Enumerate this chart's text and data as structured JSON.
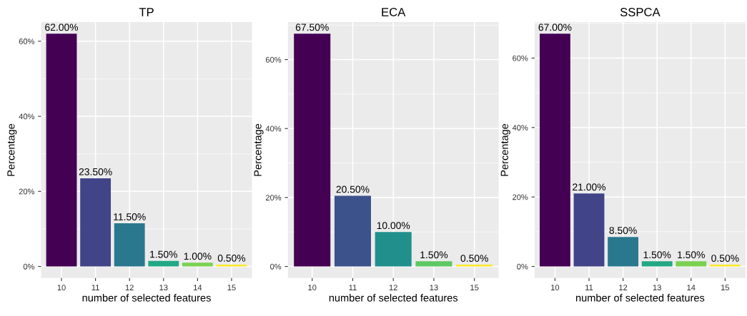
{
  "chart_data": [
    {
      "type": "bar",
      "title": "TP",
      "xlabel": "number of selected features",
      "ylabel": "Percentage",
      "categories": [
        "10",
        "11",
        "12",
        "13",
        "14",
        "15"
      ],
      "values": [
        62,
        23.5,
        11.5,
        1.5,
        1,
        0.5
      ],
      "colors": [
        "#440154",
        "#414487",
        "#2a788e",
        "#22a884",
        "#7ad151",
        "#fde725"
      ],
      "value_labels": [
        "62.00%",
        "23.50%",
        "11.50%",
        "1.50%",
        "1.00%",
        "0.50%"
      ],
      "ylim": [
        -3.1,
        65.1
      ],
      "yticks": [
        {
          "value": 0,
          "label": "0%"
        },
        {
          "value": 20,
          "label": "20%"
        },
        {
          "value": 40,
          "label": "40%"
        },
        {
          "value": 60,
          "label": "60%"
        }
      ],
      "grid": true,
      "legend": false
    },
    {
      "type": "bar",
      "title": "ECA",
      "xlabel": "number of selected features",
      "ylabel": "Percentage",
      "categories": [
        "10",
        "11",
        "12",
        "13",
        "15"
      ],
      "values": [
        67.5,
        20.5,
        10,
        1.5,
        0.5
      ],
      "colors": [
        "#440154",
        "#3b528b",
        "#21908c",
        "#5dc863",
        "#fde725"
      ],
      "value_labels": [
        "67.50%",
        "20.50%",
        "10.00%",
        "1.50%",
        "0.50%"
      ],
      "ylim": [
        -3.375,
        70.875
      ],
      "yticks": [
        {
          "value": 0,
          "label": "0%"
        },
        {
          "value": 20,
          "label": "20%"
        },
        {
          "value": 40,
          "label": "40%"
        },
        {
          "value": 60,
          "label": "60%"
        }
      ],
      "grid": true,
      "legend": false
    },
    {
      "type": "bar",
      "title": "SSPCA",
      "xlabel": "number of selected features",
      "ylabel": "Percentage",
      "categories": [
        "10",
        "11",
        "12",
        "13",
        "14",
        "15"
      ],
      "values": [
        67,
        21,
        8.5,
        1.5,
        1.5,
        0.5
      ],
      "colors": [
        "#440154",
        "#414487",
        "#2a788e",
        "#22a884",
        "#7ad151",
        "#fde725"
      ],
      "value_labels": [
        "67.00%",
        "21.00%",
        "8.50%",
        "1.50%",
        "1.50%",
        "0.50%"
      ],
      "ylim": [
        -3.35,
        70.35
      ],
      "yticks": [
        {
          "value": 0,
          "label": "0%"
        },
        {
          "value": 20,
          "label": "20%"
        },
        {
          "value": 40,
          "label": "40%"
        },
        {
          "value": 60,
          "label": "60%"
        }
      ],
      "grid": true,
      "legend": false
    }
  ]
}
